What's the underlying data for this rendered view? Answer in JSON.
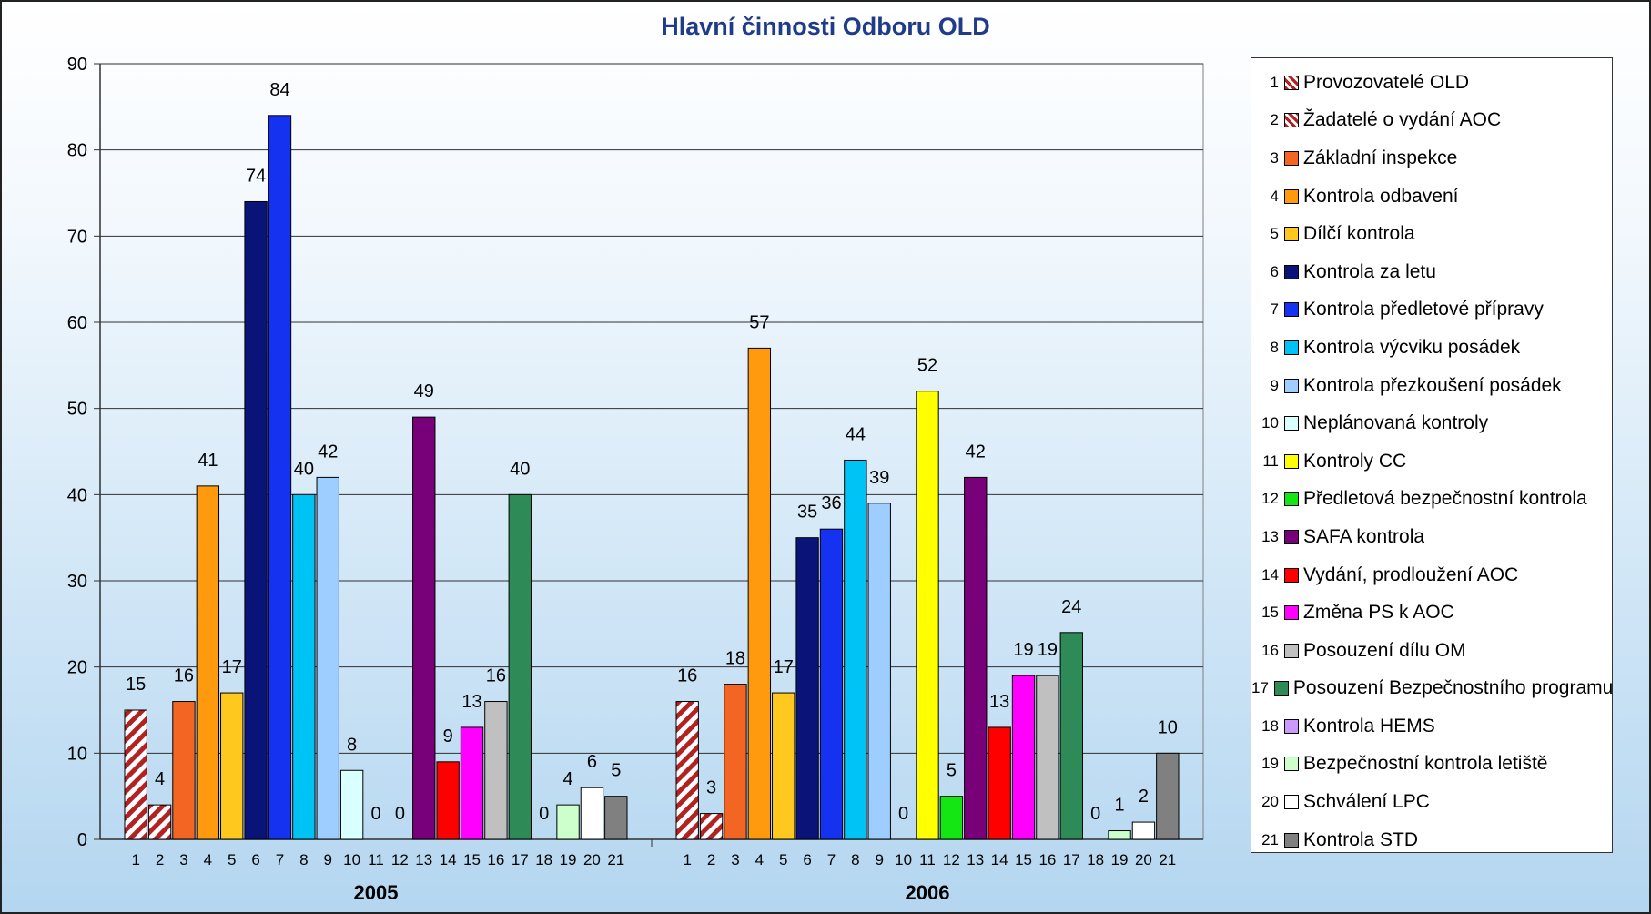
{
  "title": "Hlavní činnosti Odboru OLD",
  "chart_data": {
    "type": "bar",
    "title": "Hlavní činnosti Odboru OLD",
    "ylim": [
      0,
      90
    ],
    "yticks": [
      0,
      10,
      20,
      30,
      40,
      50,
      60,
      70,
      80,
      90
    ],
    "grid": true,
    "legend_position": "right",
    "groups": [
      "2005",
      "2006"
    ],
    "series": [
      {
        "num": "1",
        "name": "Provozovatelé OLD",
        "color": "#c0504d",
        "pattern": "hatch",
        "values": [
          15,
          16
        ]
      },
      {
        "num": "2",
        "name": "Žadatelé o vydání AOC",
        "color": "#c0504d",
        "pattern": "hatch",
        "values": [
          4,
          3
        ]
      },
      {
        "num": "3",
        "name": "Základní inspekce",
        "color": "#f26522",
        "values": [
          16,
          18
        ]
      },
      {
        "num": "4",
        "name": "Kontrola odbavení",
        "color": "#ff9a0e",
        "values": [
          41,
          57
        ]
      },
      {
        "num": "5",
        "name": "Dílčí kontrola",
        "color": "#ffc81e",
        "values": [
          17,
          17
        ]
      },
      {
        "num": "6",
        "name": "Kontrola za letu",
        "color": "#0a1478",
        "values": [
          74,
          35
        ]
      },
      {
        "num": "7",
        "name": "Kontrola předletové přípravy",
        "color": "#1432f0",
        "values": [
          84,
          36
        ]
      },
      {
        "num": "8",
        "name": "Kontrola výcviku posádek",
        "color": "#00c3f5",
        "values": [
          40,
          44
        ]
      },
      {
        "num": "9",
        "name": "Kontrola přezkoušení posádek",
        "color": "#9ecdff",
        "values": [
          42,
          39
        ]
      },
      {
        "num": "10",
        "name": "Neplánovaná kontroly",
        "color": "#d9ffff",
        "values": [
          8,
          0
        ]
      },
      {
        "num": "11",
        "name": "Kontroly CC",
        "color": "#ffff00",
        "values": [
          0,
          52
        ]
      },
      {
        "num": "12",
        "name": "Předletová bezpečnostní kontrola",
        "color": "#14e614",
        "values": [
          0,
          5
        ]
      },
      {
        "num": "13",
        "name": "SAFA kontrola",
        "color": "#780078",
        "values": [
          49,
          42
        ]
      },
      {
        "num": "14",
        "name": "Vydání, prodloužení AOC",
        "color": "#ff0000",
        "values": [
          9,
          13
        ]
      },
      {
        "num": "15",
        "name": "Změna PS k AOC",
        "color": "#ff00ff",
        "values": [
          13,
          19
        ]
      },
      {
        "num": "16",
        "name": "Posouzení dílu OM",
        "color": "#c0c0c0",
        "values": [
          16,
          19
        ]
      },
      {
        "num": "17",
        "name": "Posouzení Bezpečnostního programu",
        "color": "#2e8b57",
        "values": [
          40,
          24
        ]
      },
      {
        "num": "18",
        "name": "Kontrola HEMS",
        "color": "#cc99ff",
        "values": [
          0,
          0
        ]
      },
      {
        "num": "19",
        "name": "Bezpečnostní kontrola letiště",
        "color": "#ccffcc",
        "values": [
          4,
          1
        ]
      },
      {
        "num": "20",
        "name": "Schválení LPC",
        "color": "#ffffff",
        "values": [
          6,
          2
        ]
      },
      {
        "num": "21",
        "name": "Kontrola STD",
        "color": "#808080",
        "values": [
          5,
          10
        ]
      }
    ]
  }
}
